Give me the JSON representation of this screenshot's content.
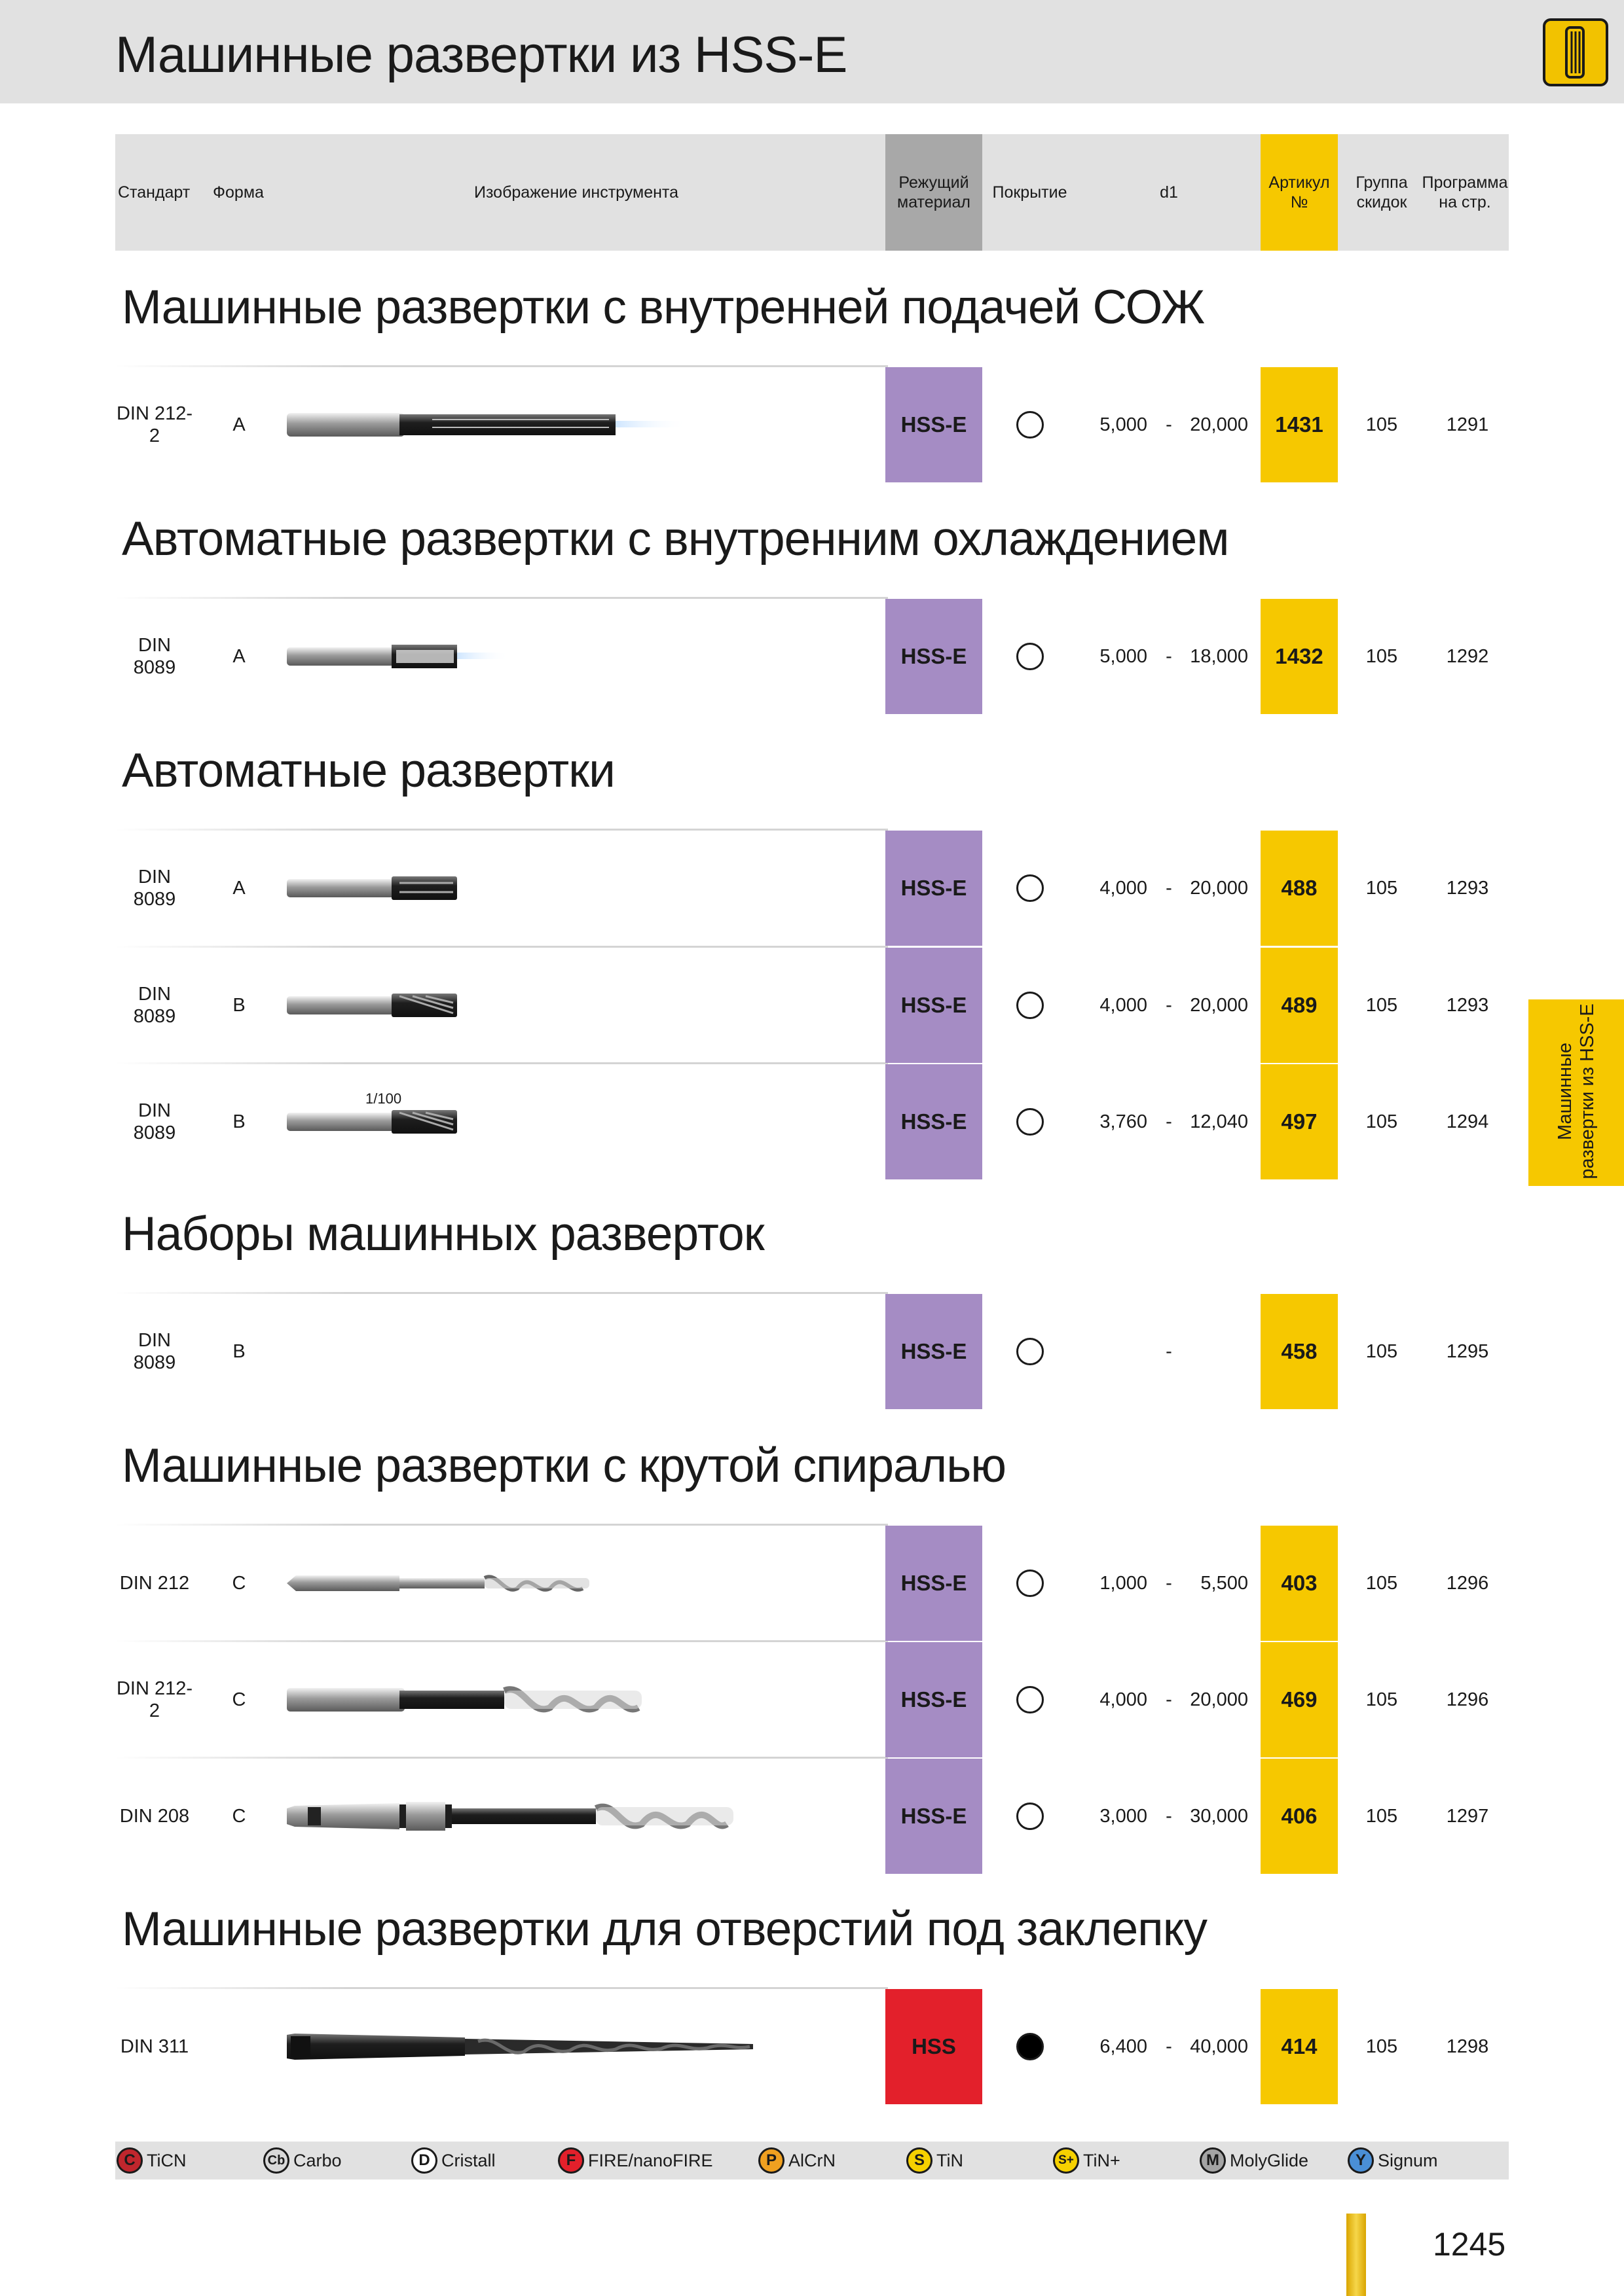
{
  "page": {
    "title": "Машинные развертки из HSS-E",
    "side_tab": "Машинные развертки из HSS-E",
    "page_number": "1245",
    "corner_icon": "reamer-icon"
  },
  "colors": {
    "banner": "#e1e1e1",
    "material_hsse": "#a58cc4",
    "material_hss": "#e3202b",
    "article": "#f6c800",
    "material_header": "#a8a8a8"
  },
  "header": {
    "standard": "Стандарт",
    "form": "Форма",
    "image": "Изображение инструмента",
    "material": "Режущий материал",
    "coating": "Покрытие",
    "d1": "d1",
    "article": "Артикул №",
    "discount_group": "Группа скидок",
    "program_page": "Программа на стр."
  },
  "sections": [
    {
      "title": "Машинные развертки с внутренней подачей СОЖ",
      "rows": [
        {
          "standard": "DIN 212-2",
          "form": "A",
          "image": "reamer-coolant-long",
          "material": "HSS-E",
          "coating": "uncoated",
          "d_min": "5,000",
          "dash": "-",
          "d_max": "20,000",
          "article": "1431",
          "group": "105",
          "page": "1291"
        }
      ]
    },
    {
      "title": "Автоматные развертки с внутренним охлаждением",
      "rows": [
        {
          "standard": "DIN 8089",
          "form": "A",
          "image": "reamer-coolant-short",
          "material": "HSS-E",
          "coating": "uncoated",
          "d_min": "5,000",
          "dash": "-",
          "d_max": "18,000",
          "article": "1432",
          "group": "105",
          "page": "1292"
        }
      ]
    },
    {
      "title": "Автоматные развертки",
      "rows": [
        {
          "standard": "DIN 8089",
          "form": "A",
          "image": "reamer-short-a",
          "material": "HSS-E",
          "coating": "uncoated",
          "d_min": "4,000",
          "dash": "-",
          "d_max": "20,000",
          "article": "488",
          "group": "105",
          "page": "1293"
        },
        {
          "standard": "DIN 8089",
          "form": "B",
          "image": "reamer-short-b",
          "material": "HSS-E",
          "coating": "uncoated",
          "d_min": "4,000",
          "dash": "-",
          "d_max": "20,000",
          "article": "489",
          "group": "105",
          "page": "1293"
        },
        {
          "standard": "DIN 8089",
          "form": "B",
          "image": "reamer-short-b",
          "image_label": "1/100",
          "material": "HSS-E",
          "coating": "uncoated",
          "d_min": "3,760",
          "dash": "-",
          "d_max": "12,040",
          "article": "497",
          "group": "105",
          "page": "1294"
        }
      ]
    },
    {
      "title": "Наборы машинных разверток",
      "rows": [
        {
          "standard": "DIN 8089",
          "form": "B",
          "image": "",
          "material": "HSS-E",
          "coating": "uncoated",
          "d_min": "",
          "dash": "-",
          "d_max": "",
          "article": "458",
          "group": "105",
          "page": "1295"
        }
      ]
    },
    {
      "title": "Машинные развертки с крутой спиралью",
      "rows": [
        {
          "standard": "DIN 212",
          "form": "C",
          "image": "reamer-spiral-thin",
          "material": "HSS-E",
          "coating": "uncoated",
          "d_min": "1,000",
          "dash": "-",
          "d_max": "5,500",
          "article": "403",
          "group": "105",
          "page": "1296"
        },
        {
          "standard": "DIN 212-2",
          "form": "C",
          "image": "reamer-spiral-cyl",
          "material": "HSS-E",
          "coating": "uncoated",
          "d_min": "4,000",
          "dash": "-",
          "d_max": "20,000",
          "article": "469",
          "group": "105",
          "page": "1296"
        },
        {
          "standard": "DIN 208",
          "form": "C",
          "image": "reamer-spiral-taper",
          "material": "HSS-E",
          "coating": "uncoated",
          "d_min": "3,000",
          "dash": "-",
          "d_max": "30,000",
          "article": "406",
          "group": "105",
          "page": "1297"
        }
      ]
    },
    {
      "title": "Машинные развертки для отверстий под заклепку",
      "rows": [
        {
          "standard": "DIN 311",
          "form": "",
          "image": "reamer-rivet-taper",
          "material": "HSS",
          "coating": "coated",
          "d_min": "6,400",
          "dash": "-",
          "d_max": "40,000",
          "article": "414",
          "group": "105",
          "page": "1298"
        }
      ]
    }
  ],
  "legend": [
    {
      "symbol": "C",
      "label": "TiCN",
      "color": "#c0262d"
    },
    {
      "symbol": "Cb",
      "label": "Carbo",
      "color": "#d9d9d9"
    },
    {
      "symbol": "D",
      "label": "Cristall",
      "color": "#ffffff"
    },
    {
      "symbol": "F",
      "label": "FIRE/nanoFIRE",
      "color": "#e3202b"
    },
    {
      "symbol": "P",
      "label": "AlCrN",
      "color": "#f0a020"
    },
    {
      "symbol": "S",
      "label": "TiN",
      "color": "#f6d100"
    },
    {
      "symbol": "S+",
      "label": "TiN+",
      "color": "#f6d100"
    },
    {
      "symbol": "M",
      "label": "MolyGlide",
      "color": "#a4a4a4"
    },
    {
      "symbol": "Y",
      "label": "Signum",
      "color": "#4a8fd6"
    }
  ]
}
